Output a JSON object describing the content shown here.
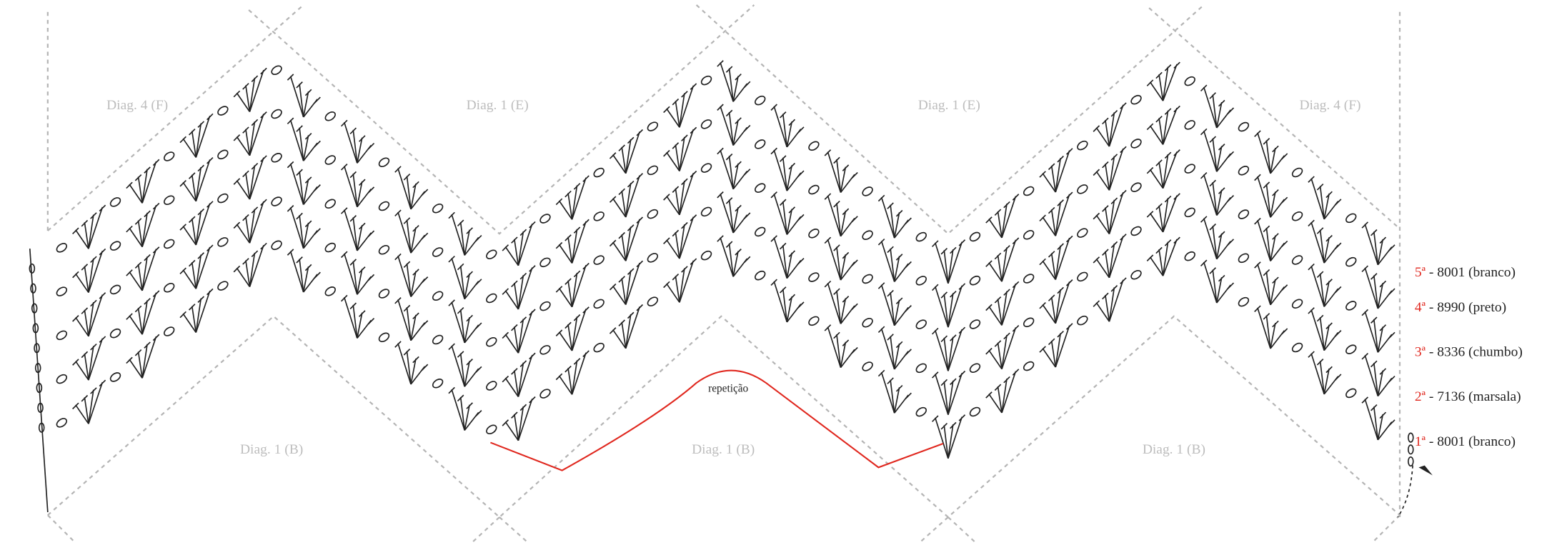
{
  "diagram_labels": [
    "Diag. 4 (F)",
    "Diag. 1 (E)",
    "Diag. 1 (E)",
    "Diag. 4 (F)",
    "Diag. 1 (B)",
    "Diag. 1 (B)",
    "Diag. 1 (B)"
  ],
  "repeat_label": "repetição",
  "rows": [
    {
      "number": "5ª",
      "text": " - 8001 (branco)"
    },
    {
      "number": "4ª",
      "text": " - 8990 (preto)"
    },
    {
      "number": "3ª",
      "text": " - 8336 (chumbo)"
    },
    {
      "number": "2ª",
      "text": " - 7136 (marsala)"
    },
    {
      "number": "1ª",
      "text": " - 8001 (branco)"
    }
  ]
}
